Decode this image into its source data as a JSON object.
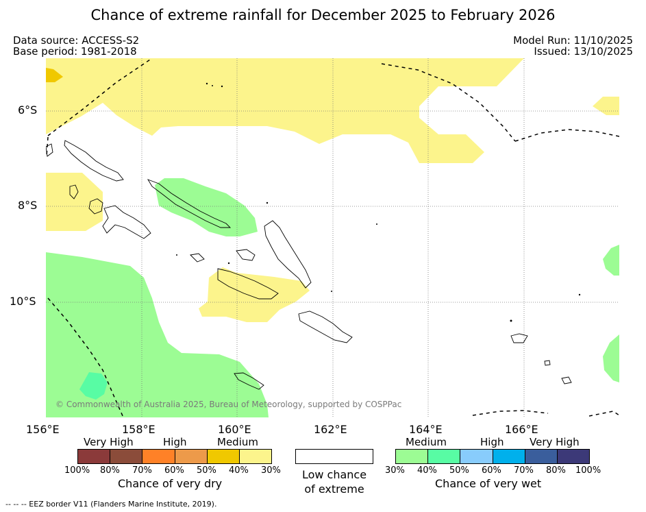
{
  "title": "Chance of extreme rainfall for December 2025 to February 2026",
  "data_source": "Data source: ACCESS-S2",
  "base_period": "Base period: 1981-2018",
  "model_run": "Model Run: 11/10/2025",
  "issued": "Issued: 13/10/2025",
  "lat_labels": [
    "6°S",
    "8°S",
    "10°S"
  ],
  "lon_labels": [
    "156°E",
    "158°E",
    "160°E",
    "162°E",
    "164°E",
    "166°E"
  ],
  "copyright": "© Commonwealth of Australia 2025, Bureau of Meteorology, supported by COSPPac",
  "legend": {
    "dry": {
      "headings": [
        "Very High",
        "High",
        "Medium"
      ],
      "ticks": [
        "100%",
        "80%",
        "70%",
        "60%",
        "50%",
        "40%",
        "30%"
      ],
      "colors": [
        "#8b3a3a",
        "#8b4c3a",
        "#ff8127",
        "#ed9a4a",
        "#f0c800",
        "#fcf48c"
      ],
      "title": "Chance of very dry"
    },
    "low": {
      "line1": "Low chance",
      "line2": "of extreme"
    },
    "wet": {
      "headings": [
        "Medium",
        "High",
        "Very High"
      ],
      "ticks": [
        "30%",
        "40%",
        "50%",
        "60%",
        "70%",
        "80%",
        "100%"
      ],
      "colors": [
        "#9cfc94",
        "#58fca4",
        "#88ccfc",
        "#00b0ec",
        "#3a5e9c",
        "#3c3978"
      ],
      "title": "Chance of very wet"
    }
  },
  "footnote": "--  --  -- EEZ border V11 (Flanders Marine Institute, 2019).",
  "colors": {
    "very_dry_light": "#fcf48c",
    "very_dry_medium": "#f0c800",
    "very_wet_medium": "#9cfc94",
    "very_wet_40": "#58fca4"
  }
}
